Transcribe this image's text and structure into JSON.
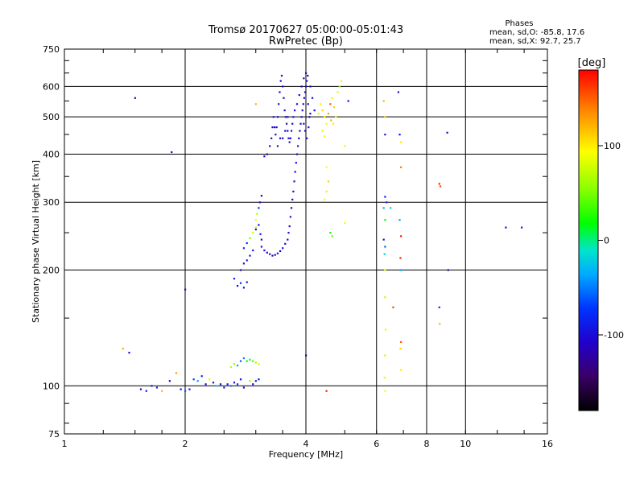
{
  "chart_data": {
    "type": "scatter",
    "title": "Tromsø 20170627 05:00:00-05:01:43",
    "subtitle": "RwPretec (Bp)",
    "xlabel": "Frequency [MHz]",
    "ylabel": "Stationary phase Virtual Height [km]",
    "x_scale": "log2",
    "y_scale": "log",
    "xlim": [
      1,
      16
    ],
    "ylim": [
      75,
      750
    ],
    "x_ticks": [
      1,
      2,
      4,
      6,
      8,
      10,
      16
    ],
    "x_tick_labels": [
      "1",
      "2",
      "4",
      "6",
      "8",
      "10",
      "16"
    ],
    "y_ticks": [
      75,
      100,
      200,
      300,
      400,
      500,
      600,
      750
    ],
    "y_tick_labels": [
      "75",
      "100",
      "200",
      "300",
      "400",
      "500",
      "600",
      "750"
    ],
    "grid": true,
    "phases": {
      "title": "Phases",
      "o_line": "mean, sd,O: -85.8, 17.6",
      "x_line": "mean, sd,X:  92.7, 25.7"
    },
    "colorbar": {
      "label": "[deg]",
      "range": [
        -180,
        180
      ],
      "ticks": [
        -100,
        0,
        100
      ],
      "tick_labels": [
        "-100",
        "0",
        "100"
      ]
    },
    "points": [
      [
        1.55,
        98,
        -100
      ],
      [
        1.6,
        97,
        -90
      ],
      [
        1.65,
        100,
        -95
      ],
      [
        1.7,
        99,
        -80
      ],
      [
        1.75,
        97,
        120
      ],
      [
        1.83,
        103,
        -110
      ],
      [
        1.9,
        108,
        130
      ],
      [
        1.95,
        98,
        -100
      ],
      [
        2.0,
        97,
        -60
      ],
      [
        2.05,
        98,
        -100
      ],
      [
        2.1,
        104,
        -70
      ],
      [
        2.15,
        103,
        -40
      ],
      [
        2.2,
        106,
        -90
      ],
      [
        2.25,
        101,
        -100
      ],
      [
        2.3,
        104,
        90
      ],
      [
        2.35,
        102,
        -100
      ],
      [
        2.4,
        100,
        -20
      ],
      [
        2.45,
        101,
        -100
      ],
      [
        2.5,
        99,
        -90
      ],
      [
        2.55,
        101,
        -100
      ],
      [
        2.6,
        100,
        -50
      ],
      [
        2.65,
        102,
        -100
      ],
      [
        2.7,
        101,
        -80
      ],
      [
        2.75,
        104,
        -100
      ],
      [
        2.8,
        99,
        -100
      ],
      [
        2.9,
        103,
        60
      ],
      [
        2.95,
        101,
        -100
      ],
      [
        3.0,
        103,
        -90
      ],
      [
        3.05,
        104,
        -100
      ],
      [
        2.6,
        112,
        70
      ],
      [
        2.65,
        114,
        60
      ],
      [
        2.7,
        113,
        -40
      ],
      [
        2.75,
        116,
        -60
      ],
      [
        2.8,
        118,
        -50
      ],
      [
        2.85,
        116,
        20
      ],
      [
        2.9,
        117,
        10
      ],
      [
        2.95,
        116,
        40
      ],
      [
        3.0,
        115,
        60
      ],
      [
        3.05,
        114,
        80
      ],
      [
        1.4,
        125,
        120
      ],
      [
        1.45,
        122,
        -100
      ],
      [
        1.5,
        560,
        -100
      ],
      [
        1.85,
        405,
        -100
      ],
      [
        2.0,
        178,
        -100
      ],
      [
        2.65,
        190,
        -90
      ],
      [
        2.7,
        182,
        -100
      ],
      [
        2.75,
        185,
        -80
      ],
      [
        2.8,
        180,
        -100
      ],
      [
        2.85,
        186,
        -90
      ],
      [
        2.75,
        200,
        -110
      ],
      [
        2.8,
        208,
        -100
      ],
      [
        2.85,
        212,
        -95
      ],
      [
        2.9,
        218,
        -90
      ],
      [
        2.95,
        225,
        -90
      ],
      [
        2.8,
        228,
        -80
      ],
      [
        2.85,
        235,
        -70
      ],
      [
        2.9,
        242,
        50
      ],
      [
        2.95,
        250,
        80
      ],
      [
        3.0,
        258,
        70
      ],
      [
        3.0,
        270,
        90
      ],
      [
        3.02,
        280,
        70
      ],
      [
        3.05,
        290,
        -80
      ],
      [
        3.07,
        300,
        -100
      ],
      [
        3.1,
        312,
        -110
      ],
      [
        3.0,
        255,
        -100
      ],
      [
        3.05,
        262,
        -100
      ],
      [
        3.08,
        248,
        -90
      ],
      [
        3.1,
        240,
        -100
      ],
      [
        3.1,
        230,
        -100
      ],
      [
        3.15,
        225,
        -100
      ],
      [
        3.2,
        222,
        -110
      ],
      [
        3.25,
        220,
        -100
      ],
      [
        3.3,
        218,
        -110
      ],
      [
        3.35,
        219,
        -100
      ],
      [
        3.4,
        221,
        -100
      ],
      [
        3.45,
        224,
        -110
      ],
      [
        3.5,
        228,
        -100
      ],
      [
        3.55,
        234,
        -100
      ],
      [
        3.6,
        240,
        -100
      ],
      [
        3.62,
        250,
        -100
      ],
      [
        3.64,
        260,
        -100
      ],
      [
        3.66,
        275,
        -100
      ],
      [
        3.68,
        290,
        -110
      ],
      [
        3.7,
        305,
        -100
      ],
      [
        3.72,
        320,
        -100
      ],
      [
        3.74,
        340,
        -100
      ],
      [
        3.76,
        360,
        -100
      ],
      [
        3.78,
        380,
        -100
      ],
      [
        3.8,
        400,
        -100
      ],
      [
        3.82,
        420,
        -100
      ],
      [
        3.84,
        440,
        -110
      ],
      [
        3.86,
        460,
        -100
      ],
      [
        3.88,
        480,
        -100
      ],
      [
        3.9,
        500,
        -100
      ],
      [
        3.92,
        520,
        -110
      ],
      [
        3.94,
        540,
        -100
      ],
      [
        3.96,
        560,
        -100
      ],
      [
        3.98,
        580,
        -100
      ],
      [
        4.0,
        600,
        -100
      ],
      [
        4.02,
        620,
        -100
      ],
      [
        4.04,
        640,
        -110
      ],
      [
        4.0,
        650,
        -100
      ],
      [
        3.95,
        630,
        -100
      ],
      [
        3.9,
        600,
        -100
      ],
      [
        3.85,
        570,
        -100
      ],
      [
        3.8,
        540,
        -100
      ],
      [
        3.75,
        520,
        -100
      ],
      [
        3.72,
        500,
        -100
      ],
      [
        3.7,
        480,
        -100
      ],
      [
        3.68,
        460,
        -100
      ],
      [
        3.66,
        440,
        -110
      ],
      [
        3.64,
        430,
        -100
      ],
      [
        3.62,
        440,
        -100
      ],
      [
        3.6,
        460,
        -100
      ],
      [
        3.58,
        480,
        -100
      ],
      [
        3.56,
        500,
        -100
      ],
      [
        3.54,
        520,
        -100
      ],
      [
        3.52,
        560,
        -100
      ],
      [
        3.5,
        600,
        -100
      ],
      [
        3.48,
        640,
        -100
      ],
      [
        3.46,
        620,
        -110
      ],
      [
        3.44,
        580,
        -100
      ],
      [
        3.42,
        540,
        -100
      ],
      [
        3.4,
        500,
        -100
      ],
      [
        3.38,
        470,
        -100
      ],
      [
        3.36,
        450,
        -100
      ],
      [
        3.34,
        470,
        -100
      ],
      [
        3.32,
        500,
        -100
      ],
      [
        3.3,
        470,
        -100
      ],
      [
        3.28,
        440,
        -100
      ],
      [
        3.25,
        420,
        -110
      ],
      [
        3.2,
        400,
        -120
      ],
      [
        3.15,
        395,
        -110
      ],
      [
        3.4,
        420,
        -100
      ],
      [
        3.45,
        440,
        -100
      ],
      [
        3.5,
        440,
        -100
      ],
      [
        3.55,
        460,
        -100
      ],
      [
        3.6,
        500,
        -100
      ],
      [
        4.1,
        600,
        -100
      ],
      [
        4.15,
        560,
        -100
      ],
      [
        4.2,
        520,
        -100
      ],
      [
        4.05,
        540,
        -100
      ],
      [
        4.08,
        500,
        -100
      ],
      [
        3.95,
        480,
        -100
      ],
      [
        3.98,
        460,
        -100
      ],
      [
        4.02,
        440,
        -100
      ],
      [
        4.06,
        470,
        -100
      ],
      [
        4.1,
        510,
        -100
      ],
      [
        4.4,
        520,
        110
      ],
      [
        4.45,
        500,
        100
      ],
      [
        4.5,
        480,
        90
      ],
      [
        4.55,
        510,
        130
      ],
      [
        4.6,
        540,
        150
      ],
      [
        4.65,
        560,
        100
      ],
      [
        4.7,
        530,
        110
      ],
      [
        4.75,
        500,
        90
      ],
      [
        4.8,
        580,
        80
      ],
      [
        4.85,
        600,
        60
      ],
      [
        4.9,
        620,
        100
      ],
      [
        4.35,
        540,
        100
      ],
      [
        4.3,
        510,
        80
      ],
      [
        4.62,
        490,
        120
      ],
      [
        4.68,
        480,
        100
      ],
      [
        4.4,
        460,
        80
      ],
      [
        4.45,
        445,
        100
      ],
      [
        4.5,
        370,
        90
      ],
      [
        4.55,
        340,
        110
      ],
      [
        4.5,
        320,
        100
      ],
      [
        4.45,
        305,
        90
      ],
      [
        4.6,
        250,
        20
      ],
      [
        4.65,
        245,
        40
      ],
      [
        5.0,
        420,
        100
      ],
      [
        5.0,
        265,
        90
      ],
      [
        5.1,
        550,
        -100
      ],
      [
        4.0,
        120,
        -120
      ],
      [
        4.5,
        97,
        170
      ],
      [
        3.0,
        540,
        120
      ],
      [
        6.25,
        550,
        120
      ],
      [
        6.3,
        500,
        110
      ],
      [
        6.3,
        450,
        -100
      ],
      [
        6.3,
        310,
        -90
      ],
      [
        6.35,
        300,
        -70
      ],
      [
        6.25,
        290,
        -30
      ],
      [
        6.3,
        270,
        20
      ],
      [
        6.25,
        240,
        -100
      ],
      [
        6.3,
        230,
        -60
      ],
      [
        6.28,
        220,
        -20
      ],
      [
        6.3,
        200,
        90
      ],
      [
        6.3,
        170,
        70
      ],
      [
        6.32,
        140,
        80
      ],
      [
        6.3,
        120,
        70
      ],
      [
        6.28,
        105,
        80
      ],
      [
        6.3,
        97,
        90
      ],
      [
        6.5,
        290,
        -20
      ],
      [
        6.6,
        160,
        160
      ],
      [
        6.8,
        580,
        -100
      ],
      [
        6.85,
        450,
        -100
      ],
      [
        6.9,
        430,
        100
      ],
      [
        6.9,
        370,
        140
      ],
      [
        6.85,
        270,
        -40
      ],
      [
        6.9,
        245,
        170
      ],
      [
        6.88,
        215,
        170
      ],
      [
        6.9,
        200,
        -40
      ],
      [
        6.9,
        130,
        150
      ],
      [
        6.88,
        125,
        110
      ],
      [
        6.9,
        110,
        100
      ],
      [
        8.6,
        335,
        170
      ],
      [
        8.65,
        330,
        160
      ],
      [
        8.6,
        160,
        -80
      ],
      [
        8.62,
        145,
        120
      ],
      [
        9.0,
        455,
        -100
      ],
      [
        9.05,
        200,
        -120
      ],
      [
        12.6,
        258,
        -100
      ],
      [
        13.8,
        258,
        -90
      ]
    ]
  }
}
